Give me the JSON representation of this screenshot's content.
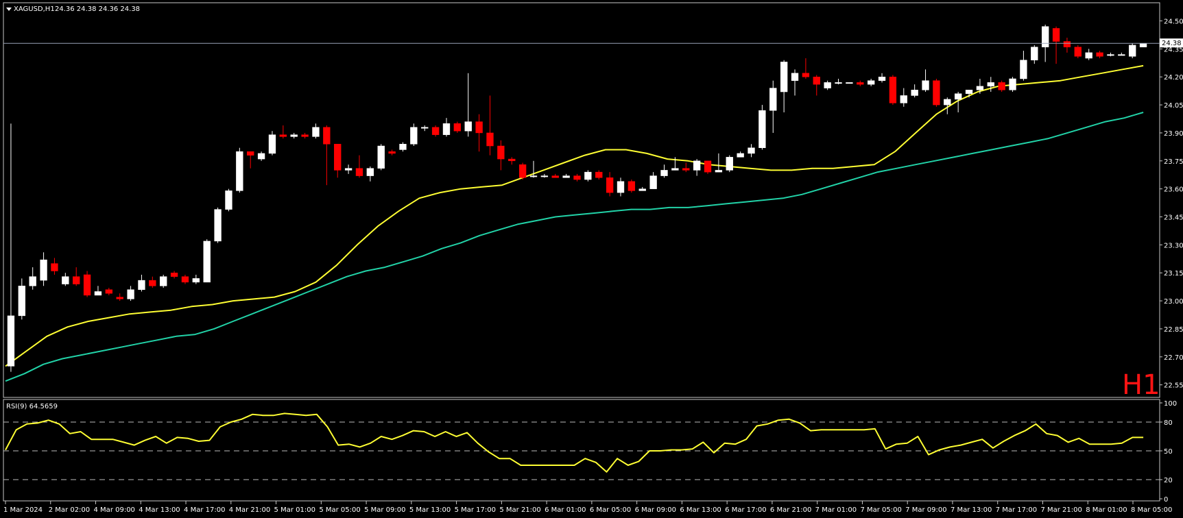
{
  "header": {
    "symbol": "XAGUSD,H1",
    "ohlc": "24.36 24.38 24.36 24.38"
  },
  "timeframe_label": "H1",
  "colors": {
    "background": "#000000",
    "bull_candle": "#ffffff",
    "bear_candle": "#ff0000",
    "ma_fast": "#ffff33",
    "ma_slow": "#22d3a8",
    "rsi_line": "#ffff33",
    "grid_level": "#bdbdbd",
    "frame": "#c8c8c8"
  },
  "chart_data": [
    {
      "type": "candlestick",
      "name": "XAGUSD,H1",
      "ylim": [
        22.49,
        24.59
      ],
      "y_ticks": [
        "24.50",
        "24.35",
        "24.20",
        "24.05",
        "23.90",
        "23.75",
        "23.60",
        "23.45",
        "23.30",
        "23.15",
        "23.00",
        "22.85",
        "22.70",
        "22.55"
      ],
      "x_ticks": [
        "1 Mar 2024",
        "2 Mar 02:00",
        "4 Mar 09:00",
        "4 Mar 13:00",
        "4 Mar 17:00",
        "4 Mar 21:00",
        "5 Mar 01:00",
        "5 Mar 05:00",
        "5 Mar 09:00",
        "5 Mar 13:00",
        "5 Mar 17:00",
        "5 Mar 21:00",
        "6 Mar 01:00",
        "6 Mar 05:00",
        "6 Mar 09:00",
        "6 Mar 13:00",
        "6 Mar 17:00",
        "6 Mar 21:00",
        "7 Mar 01:00",
        "7 Mar 05:00",
        "7 Mar 09:00",
        "7 Mar 13:00",
        "7 Mar 17:00",
        "7 Mar 21:00",
        "8 Mar 01:00",
        "8 Mar 05:00"
      ],
      "current_price": "24.38",
      "candles": [
        [
          22.65,
          22.92,
          23.95,
          22.62
        ],
        [
          22.92,
          23.08,
          23.12,
          22.9
        ],
        [
          23.08,
          23.13,
          23.18,
          23.06
        ],
        [
          23.11,
          23.22,
          23.26,
          23.08
        ],
        [
          23.2,
          23.16,
          23.23,
          23.14
        ],
        [
          23.09,
          23.13,
          23.15,
          23.08
        ],
        [
          23.13,
          23.09,
          23.18,
          23.08
        ],
        [
          23.14,
          23.03,
          23.16,
          23.02
        ],
        [
          23.03,
          23.05,
          23.08,
          23.03
        ],
        [
          23.06,
          23.04,
          23.07,
          23.03
        ],
        [
          23.02,
          23.01,
          23.04,
          23.0
        ],
        [
          23.01,
          23.06,
          23.08,
          23.0
        ],
        [
          23.06,
          23.11,
          23.14,
          23.05
        ],
        [
          23.11,
          23.08,
          23.13,
          23.07
        ],
        [
          23.08,
          23.13,
          23.14,
          23.07
        ],
        [
          23.15,
          23.13,
          23.16,
          23.12
        ],
        [
          23.13,
          23.1,
          23.14,
          23.09
        ],
        [
          23.1,
          23.12,
          23.14,
          23.09
        ],
        [
          23.1,
          23.32,
          23.33,
          23.1
        ],
        [
          23.32,
          23.49,
          23.5,
          23.31
        ],
        [
          23.49,
          23.59,
          23.6,
          23.48
        ],
        [
          23.59,
          23.8,
          23.82,
          23.58
        ],
        [
          23.8,
          23.78,
          23.8,
          23.71
        ],
        [
          23.76,
          23.79,
          23.8,
          23.75
        ],
        [
          23.79,
          23.89,
          23.91,
          23.78
        ],
        [
          23.89,
          23.88,
          23.94,
          23.87
        ],
        [
          23.88,
          23.89,
          23.9,
          23.87
        ],
        [
          23.89,
          23.88,
          23.9,
          23.87
        ],
        [
          23.88,
          23.93,
          23.95,
          23.87
        ],
        [
          23.93,
          23.84,
          23.94,
          23.62
        ],
        [
          23.84,
          23.7,
          23.72,
          23.66
        ],
        [
          23.7,
          23.71,
          23.73,
          23.68
        ],
        [
          23.71,
          23.67,
          23.78,
          23.66
        ],
        [
          23.67,
          23.71,
          23.72,
          23.64
        ],
        [
          23.71,
          23.83,
          23.84,
          23.7
        ],
        [
          23.8,
          23.79,
          23.81,
          23.78
        ],
        [
          23.81,
          23.84,
          23.85,
          23.8
        ],
        [
          23.84,
          23.93,
          23.95,
          23.83
        ],
        [
          23.93,
          23.93,
          23.94,
          23.91
        ],
        [
          23.93,
          23.89,
          23.94,
          23.88
        ],
        [
          23.89,
          23.95,
          23.98,
          23.88
        ],
        [
          23.95,
          23.91,
          23.96,
          23.9
        ],
        [
          23.91,
          23.96,
          24.22,
          23.88
        ],
        [
          23.96,
          23.9,
          24.0,
          23.8
        ],
        [
          23.9,
          23.83,
          24.1,
          23.78
        ],
        [
          23.83,
          23.76,
          23.86,
          23.7
        ],
        [
          23.76,
          23.75,
          23.77,
          23.73
        ],
        [
          23.73,
          23.66,
          23.74,
          23.65
        ],
        [
          23.67,
          23.67,
          23.75,
          23.66
        ],
        [
          23.67,
          23.67,
          23.68,
          23.66
        ],
        [
          23.67,
          23.66,
          23.68,
          23.66
        ],
        [
          23.66,
          23.67,
          23.68,
          23.66
        ],
        [
          23.67,
          23.65,
          23.68,
          23.64
        ],
        [
          23.65,
          23.69,
          23.7,
          23.64
        ],
        [
          23.69,
          23.66,
          23.7,
          23.65
        ],
        [
          23.66,
          23.58,
          23.69,
          23.56
        ],
        [
          23.58,
          23.64,
          23.66,
          23.56
        ],
        [
          23.64,
          23.59,
          23.65,
          23.58
        ],
        [
          23.59,
          23.6,
          23.61,
          23.59
        ],
        [
          23.6,
          23.67,
          23.69,
          23.6
        ],
        [
          23.67,
          23.7,
          23.73,
          23.66
        ],
        [
          23.7,
          23.71,
          23.77,
          23.7
        ],
        [
          23.71,
          23.7,
          23.74,
          23.69
        ],
        [
          23.7,
          23.75,
          23.76,
          23.67
        ],
        [
          23.75,
          23.69,
          23.75,
          23.68
        ],
        [
          23.69,
          23.7,
          23.79,
          23.69
        ],
        [
          23.7,
          23.77,
          23.78,
          23.69
        ],
        [
          23.77,
          23.79,
          23.8,
          23.77
        ],
        [
          23.79,
          23.82,
          23.84,
          23.77
        ],
        [
          23.82,
          24.02,
          24.05,
          23.81
        ],
        [
          24.02,
          24.14,
          24.18,
          23.9
        ],
        [
          24.12,
          24.28,
          24.29,
          24.01
        ],
        [
          24.18,
          24.22,
          24.24,
          24.1
        ],
        [
          24.22,
          24.2,
          24.3,
          24.19
        ],
        [
          24.2,
          24.16,
          24.21,
          24.1
        ],
        [
          24.14,
          24.17,
          24.18,
          24.13
        ],
        [
          24.17,
          24.17,
          24.19,
          24.16
        ],
        [
          24.17,
          24.17,
          24.17,
          24.17
        ],
        [
          24.17,
          24.16,
          24.18,
          24.15
        ],
        [
          24.16,
          24.18,
          24.19,
          24.15
        ],
        [
          24.18,
          24.2,
          24.22,
          24.17
        ],
        [
          24.2,
          24.06,
          24.21,
          24.05
        ],
        [
          24.06,
          24.1,
          24.14,
          24.04
        ],
        [
          24.1,
          24.13,
          24.16,
          24.09
        ],
        [
          24.13,
          24.18,
          24.24,
          24.12
        ],
        [
          24.18,
          24.05,
          24.19,
          24.04
        ],
        [
          24.05,
          24.08,
          24.09,
          24.0
        ],
        [
          24.08,
          24.11,
          24.12,
          24.01
        ],
        [
          24.11,
          24.13,
          24.13,
          24.09
        ],
        [
          24.13,
          24.15,
          24.19,
          24.11
        ],
        [
          24.15,
          24.17,
          24.2,
          24.12
        ],
        [
          24.17,
          24.13,
          24.18,
          24.12
        ],
        [
          24.13,
          24.19,
          24.2,
          24.12
        ],
        [
          24.19,
          24.29,
          24.34,
          24.18
        ],
        [
          24.29,
          24.36,
          24.37,
          24.27
        ],
        [
          24.36,
          24.47,
          24.48,
          24.28
        ],
        [
          24.46,
          24.39,
          24.47,
          24.27
        ],
        [
          24.39,
          24.36,
          24.41,
          24.33
        ],
        [
          24.36,
          24.31,
          24.37,
          24.3
        ],
        [
          24.3,
          24.33,
          24.35,
          24.29
        ],
        [
          24.33,
          24.31,
          24.34,
          24.3
        ],
        [
          24.32,
          24.32,
          24.33,
          24.31
        ],
        [
          24.32,
          24.32,
          24.33,
          24.32
        ],
        [
          24.31,
          24.37,
          24.38,
          24.3
        ],
        [
          24.36,
          24.38,
          24.38,
          24.36
        ]
      ],
      "ma_fast": [
        22.65,
        22.73,
        22.81,
        22.86,
        22.89,
        22.91,
        22.93,
        22.94,
        22.95,
        22.97,
        22.98,
        23.0,
        23.01,
        23.02,
        23.05,
        23.1,
        23.19,
        23.3,
        23.4,
        23.48,
        23.55,
        23.58,
        23.6,
        23.61,
        23.62,
        23.66,
        23.7,
        23.74,
        23.78,
        23.81,
        23.81,
        23.79,
        23.76,
        23.75,
        23.73,
        23.72,
        23.71,
        23.7,
        23.7,
        23.71,
        23.71,
        23.72,
        23.73,
        23.8,
        23.9,
        24.0,
        24.07,
        24.12,
        24.15,
        24.16,
        24.17,
        24.18,
        24.2,
        24.22,
        24.24,
        24.26
      ],
      "ma_slow": [
        22.57,
        22.61,
        22.66,
        22.69,
        22.71,
        22.73,
        22.75,
        22.77,
        22.79,
        22.81,
        22.82,
        22.85,
        22.89,
        22.93,
        22.97,
        23.01,
        23.05,
        23.09,
        23.13,
        23.16,
        23.18,
        23.21,
        23.24,
        23.28,
        23.31,
        23.35,
        23.38,
        23.41,
        23.43,
        23.45,
        23.46,
        23.47,
        23.48,
        23.49,
        23.49,
        23.5,
        23.5,
        23.51,
        23.52,
        23.53,
        23.54,
        23.55,
        23.57,
        23.6,
        23.63,
        23.66,
        23.69,
        23.71,
        23.73,
        23.75,
        23.77,
        23.79,
        23.81,
        23.83,
        23.85,
        23.87,
        23.9,
        23.93,
        23.96,
        23.98,
        24.01
      ]
    },
    {
      "type": "line",
      "name": "RSI(9) 64.5659",
      "ylim": [
        0,
        100
      ],
      "y_ticks": [
        "100",
        "80",
        "50",
        "20",
        "0"
      ],
      "levels": [
        80,
        50,
        20
      ],
      "values": [
        51,
        72,
        78,
        79,
        82,
        78,
        68,
        70,
        62,
        62,
        62,
        59,
        56,
        61,
        65,
        58,
        64,
        63,
        60,
        61,
        75,
        80,
        83,
        88,
        87,
        87,
        89,
        88,
        87,
        88,
        75,
        56,
        57,
        54,
        58,
        65,
        62,
        66,
        71,
        70,
        65,
        70,
        65,
        69,
        58,
        49,
        42,
        42,
        35,
        35,
        35,
        35,
        35,
        35,
        42,
        38,
        28,
        42,
        35,
        39,
        50,
        50,
        51,
        51,
        52,
        59,
        48,
        58,
        57,
        62,
        76,
        78,
        82,
        83,
        79,
        71,
        72,
        72,
        72,
        72,
        72,
        73,
        52,
        57,
        58,
        65,
        46,
        51,
        54,
        56,
        59,
        62,
        53,
        60,
        66,
        71,
        78,
        68,
        66,
        59,
        63,
        57,
        57,
        57,
        58,
        64,
        64
      ]
    }
  ]
}
